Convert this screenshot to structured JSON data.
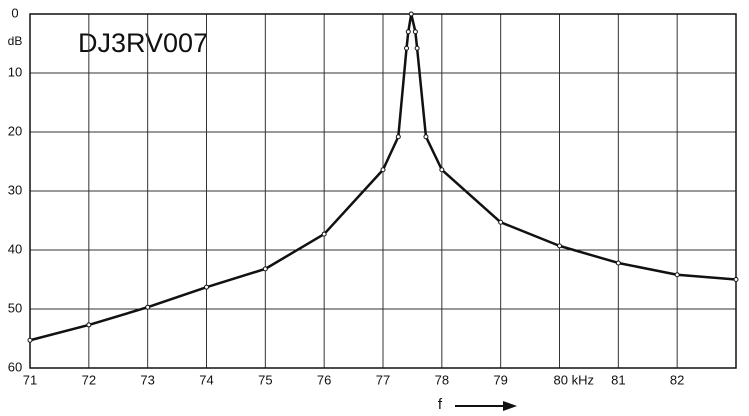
{
  "chart_data": {
    "type": "line",
    "title": "DJ3RV007",
    "y_unit_label": "dB",
    "x_label": "f",
    "x": [
      71,
      72,
      73,
      74,
      75,
      76,
      77,
      77.26,
      77.4,
      77.43,
      77.48,
      77.55,
      77.58,
      77.73,
      78,
      79,
      80,
      81,
      82,
      83
    ],
    "series": [
      {
        "color": "#111111",
        "values": [
          55.3,
          52.7,
          49.7,
          46.3,
          43.2,
          37.3,
          26.4,
          20.8,
          5.8,
          3,
          0,
          3,
          5.8,
          20.8,
          26.4,
          35.3,
          39.3,
          42.2,
          44.2,
          45
        ]
      }
    ],
    "xlim": [
      71,
      83
    ],
    "xticks": [
      71,
      72,
      73,
      74,
      75,
      76,
      77,
      78,
      79,
      {
        "value": 80,
        "label": "80 kHz"
      },
      81,
      82
    ],
    "ylim": [
      60,
      0
    ],
    "yticks": [
      0,
      10,
      20,
      30,
      40,
      50,
      60
    ],
    "grid": true
  }
}
